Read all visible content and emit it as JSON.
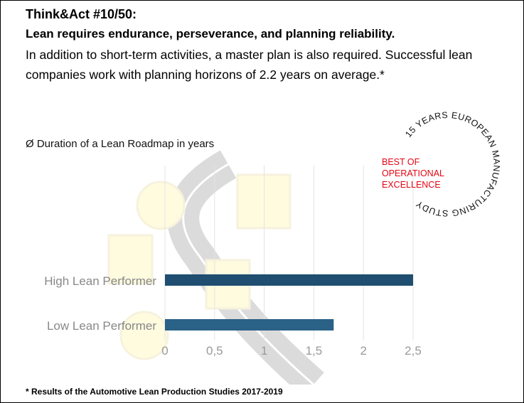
{
  "header": {
    "title": "Think&Act #10/50:",
    "subtitle": "Lean requires endurance, perseverance, and planning reliability.",
    "body": "In addition to short-term activities, a master plan is also required. Successful lean companies work with planning horizons of 2.2 years on average.*"
  },
  "seal": {
    "ring_text": "15 YEARS EUROPEAN MANUFACTURING STUDY",
    "center_lines": [
      "BEST OF",
      "OPERATIONAL",
      "EXCELLENCE"
    ],
    "color": "#e30613"
  },
  "footnote": "* Results of the Automotive Lean Production Studies 2017-2019",
  "chart_data": {
    "type": "bar",
    "orientation": "horizontal",
    "title": "Ø Duration of a Lean Roadmap in years",
    "categories": [
      "High Lean Performer",
      "Low Lean Performer"
    ],
    "values": [
      2.5,
      1.7
    ],
    "colors": [
      "#1f4e70",
      "#2a6186"
    ],
    "xlim": [
      0,
      2.5
    ],
    "xticks": [
      "0",
      "0,5",
      "1",
      "1,5",
      "2",
      "2,5"
    ],
    "grid": true
  }
}
